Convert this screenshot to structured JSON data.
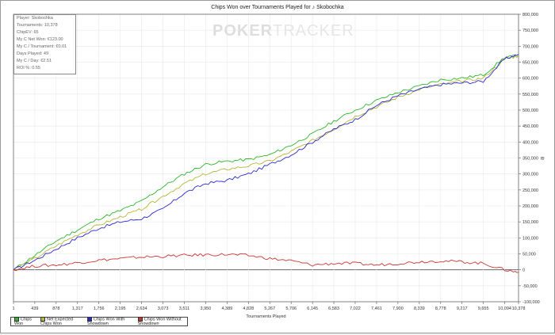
{
  "stats": [
    "Player: Skobochka",
    "Tournaments: 10,378",
    "ChipEV: 65",
    "My C Net Won: €123.00",
    "My C / Tournament: €0.01",
    "Days Played: 49",
    "My C / Day: €2.51",
    "ROI %: 0.55"
  ],
  "logo": {
    "bold": "POKER",
    "light": "TRACKER"
  },
  "y_axis_symbol": "₪",
  "chart_data": {
    "type": "line",
    "title": "Chips Won over Tournaments Played for ♪ Skobochka",
    "xlabel": "Tournaments Played",
    "ylabel": "",
    "xlim": [
      1,
      10378
    ],
    "ylim": [
      -100000,
      800000
    ],
    "x_ticks": [
      "1",
      "439",
      "878",
      "1,317",
      "1,756",
      "2,195",
      "2,634",
      "3,073",
      "3,511",
      "3,950",
      "4,389",
      "4,828",
      "5,267",
      "5,706",
      "6,145",
      "6,583",
      "7,022",
      "7,461",
      "7,900",
      "8,339",
      "8,778",
      "9,217",
      "9,655",
      "10,094",
      "10,378"
    ],
    "y_ticks": [
      "800,000",
      "750,000",
      "700,000",
      "650,000",
      "600,000",
      "550,000",
      "500,000",
      "450,000",
      "400,000",
      "350,000",
      "300,000",
      "250,000",
      "200,000",
      "150,000",
      "100,000",
      "50,000",
      "0",
      "-50,000",
      "-100,000"
    ],
    "x": [
      1,
      439,
      878,
      1317,
      1756,
      2195,
      2634,
      3073,
      3511,
      3950,
      4389,
      4828,
      5267,
      5706,
      6145,
      6583,
      7022,
      7461,
      7900,
      8339,
      8778,
      9217,
      9655,
      10094,
      10378
    ],
    "series": [
      {
        "name": "Chips Won",
        "color": "#2db52d",
        "values": [
          0,
          45000,
          90000,
          125000,
          160000,
          185000,
          215000,
          260000,
          300000,
          330000,
          340000,
          345000,
          360000,
          390000,
          425000,
          465000,
          500000,
          530000,
          555000,
          575000,
          595000,
          600000,
          610000,
          665000,
          670000
        ]
      },
      {
        "name": "Net Expected Chips Won",
        "color": "#b5b53a",
        "values": [
          0,
          35000,
          75000,
          110000,
          140000,
          165000,
          190000,
          230000,
          270000,
          300000,
          315000,
          325000,
          340000,
          370000,
          405000,
          440000,
          480000,
          510000,
          540000,
          565000,
          580000,
          590000,
          600000,
          660000,
          670000
        ]
      },
      {
        "name": "Chips Won With Showdown",
        "color": "#2a2ad0",
        "values": [
          0,
          30000,
          65000,
          100000,
          130000,
          150000,
          160000,
          190000,
          240000,
          270000,
          280000,
          300000,
          330000,
          360000,
          400000,
          440000,
          470000,
          515000,
          545000,
          565000,
          580000,
          585000,
          590000,
          660000,
          675000
        ]
      },
      {
        "name": "Chips Won Without Showdown",
        "color": "#cc3333",
        "values": [
          0,
          12000,
          15000,
          22000,
          30000,
          35000,
          40000,
          42000,
          45000,
          47000,
          48000,
          45000,
          35000,
          28000,
          15000,
          20000,
          20000,
          15000,
          20000,
          25000,
          28000,
          25000,
          20000,
          0,
          -8000
        ]
      }
    ],
    "grid": true,
    "legend": "bottom-left"
  }
}
